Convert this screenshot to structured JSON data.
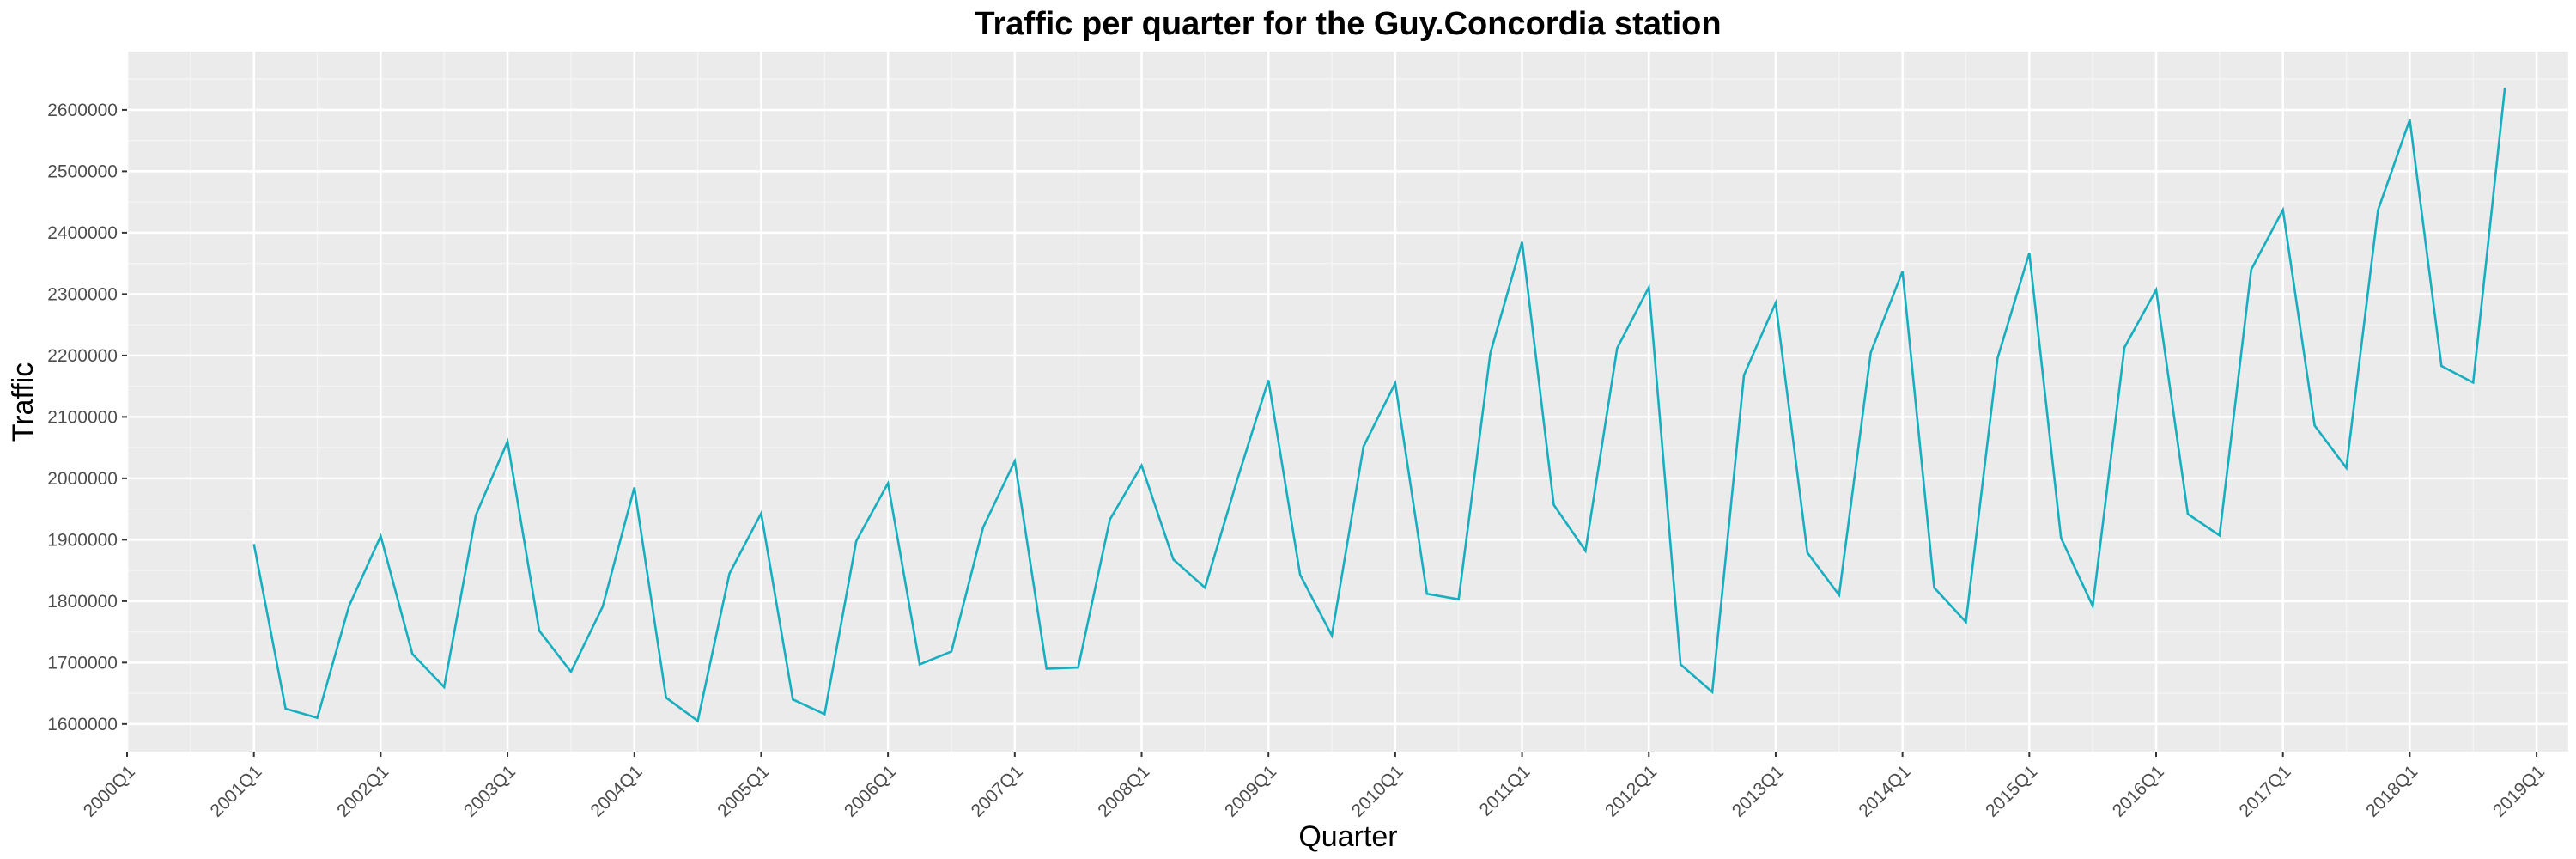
{
  "chart_data": {
    "type": "line",
    "title": "Traffic per quarter for the Guy.Concordia station",
    "xlabel": "Quarter",
    "ylabel": "Traffic",
    "grid": true,
    "legend": "none",
    "colors": {
      "line": "#17aebf",
      "panel": "#ebebeb",
      "grid_major": "#ffffff",
      "grid_minor": "#f5f5f5",
      "tick_text": "#4d4d4d"
    },
    "xlim": [
      2000.0,
      2019.25
    ],
    "ylim": [
      1555000,
      2695000
    ],
    "y_ticks": [
      1600000,
      1700000,
      1800000,
      1900000,
      2000000,
      2100000,
      2200000,
      2300000,
      2400000,
      2500000,
      2600000
    ],
    "x_ticks": [
      "2000Q1",
      "2001Q1",
      "2002Q1",
      "2003Q1",
      "2004Q1",
      "2005Q1",
      "2006Q1",
      "2007Q1",
      "2008Q1",
      "2009Q1",
      "2010Q1",
      "2011Q1",
      "2012Q1",
      "2013Q1",
      "2014Q1",
      "2015Q1",
      "2016Q1",
      "2017Q1",
      "2018Q1",
      "2019Q1"
    ],
    "series": [
      {
        "start": "2001Q1",
        "values": [
          1893000,
          1625000,
          1610000,
          1792000,
          1906000,
          1714000,
          1660000,
          1940000,
          2060000,
          1752000,
          1685000,
          1791000,
          1985000,
          1643000,
          1605000,
          1845000,
          1943000,
          1640000,
          1616000,
          1898000,
          1992000,
          1697000,
          1718000,
          1920000,
          2028000,
          1690000,
          1692000,
          1933000,
          2021000,
          1868000,
          1822000,
          1995000,
          2160000,
          1843000,
          1744000,
          2052000,
          2155000,
          1812000,
          1803000,
          2204000,
          2385000,
          1957000,
          1882000,
          2212000,
          2311000,
          1697000,
          1652000,
          2168000,
          2286000,
          1879000,
          1810000,
          2205000,
          2337000,
          1822000,
          1766000,
          2196000,
          2367000,
          1903000,
          1792000,
          2213000,
          2307000,
          1942000,
          1907000,
          2340000,
          2437000,
          2086000,
          2017000,
          2437000,
          2584000,
          2183000,
          2156000,
          2636000
        ]
      }
    ]
  }
}
